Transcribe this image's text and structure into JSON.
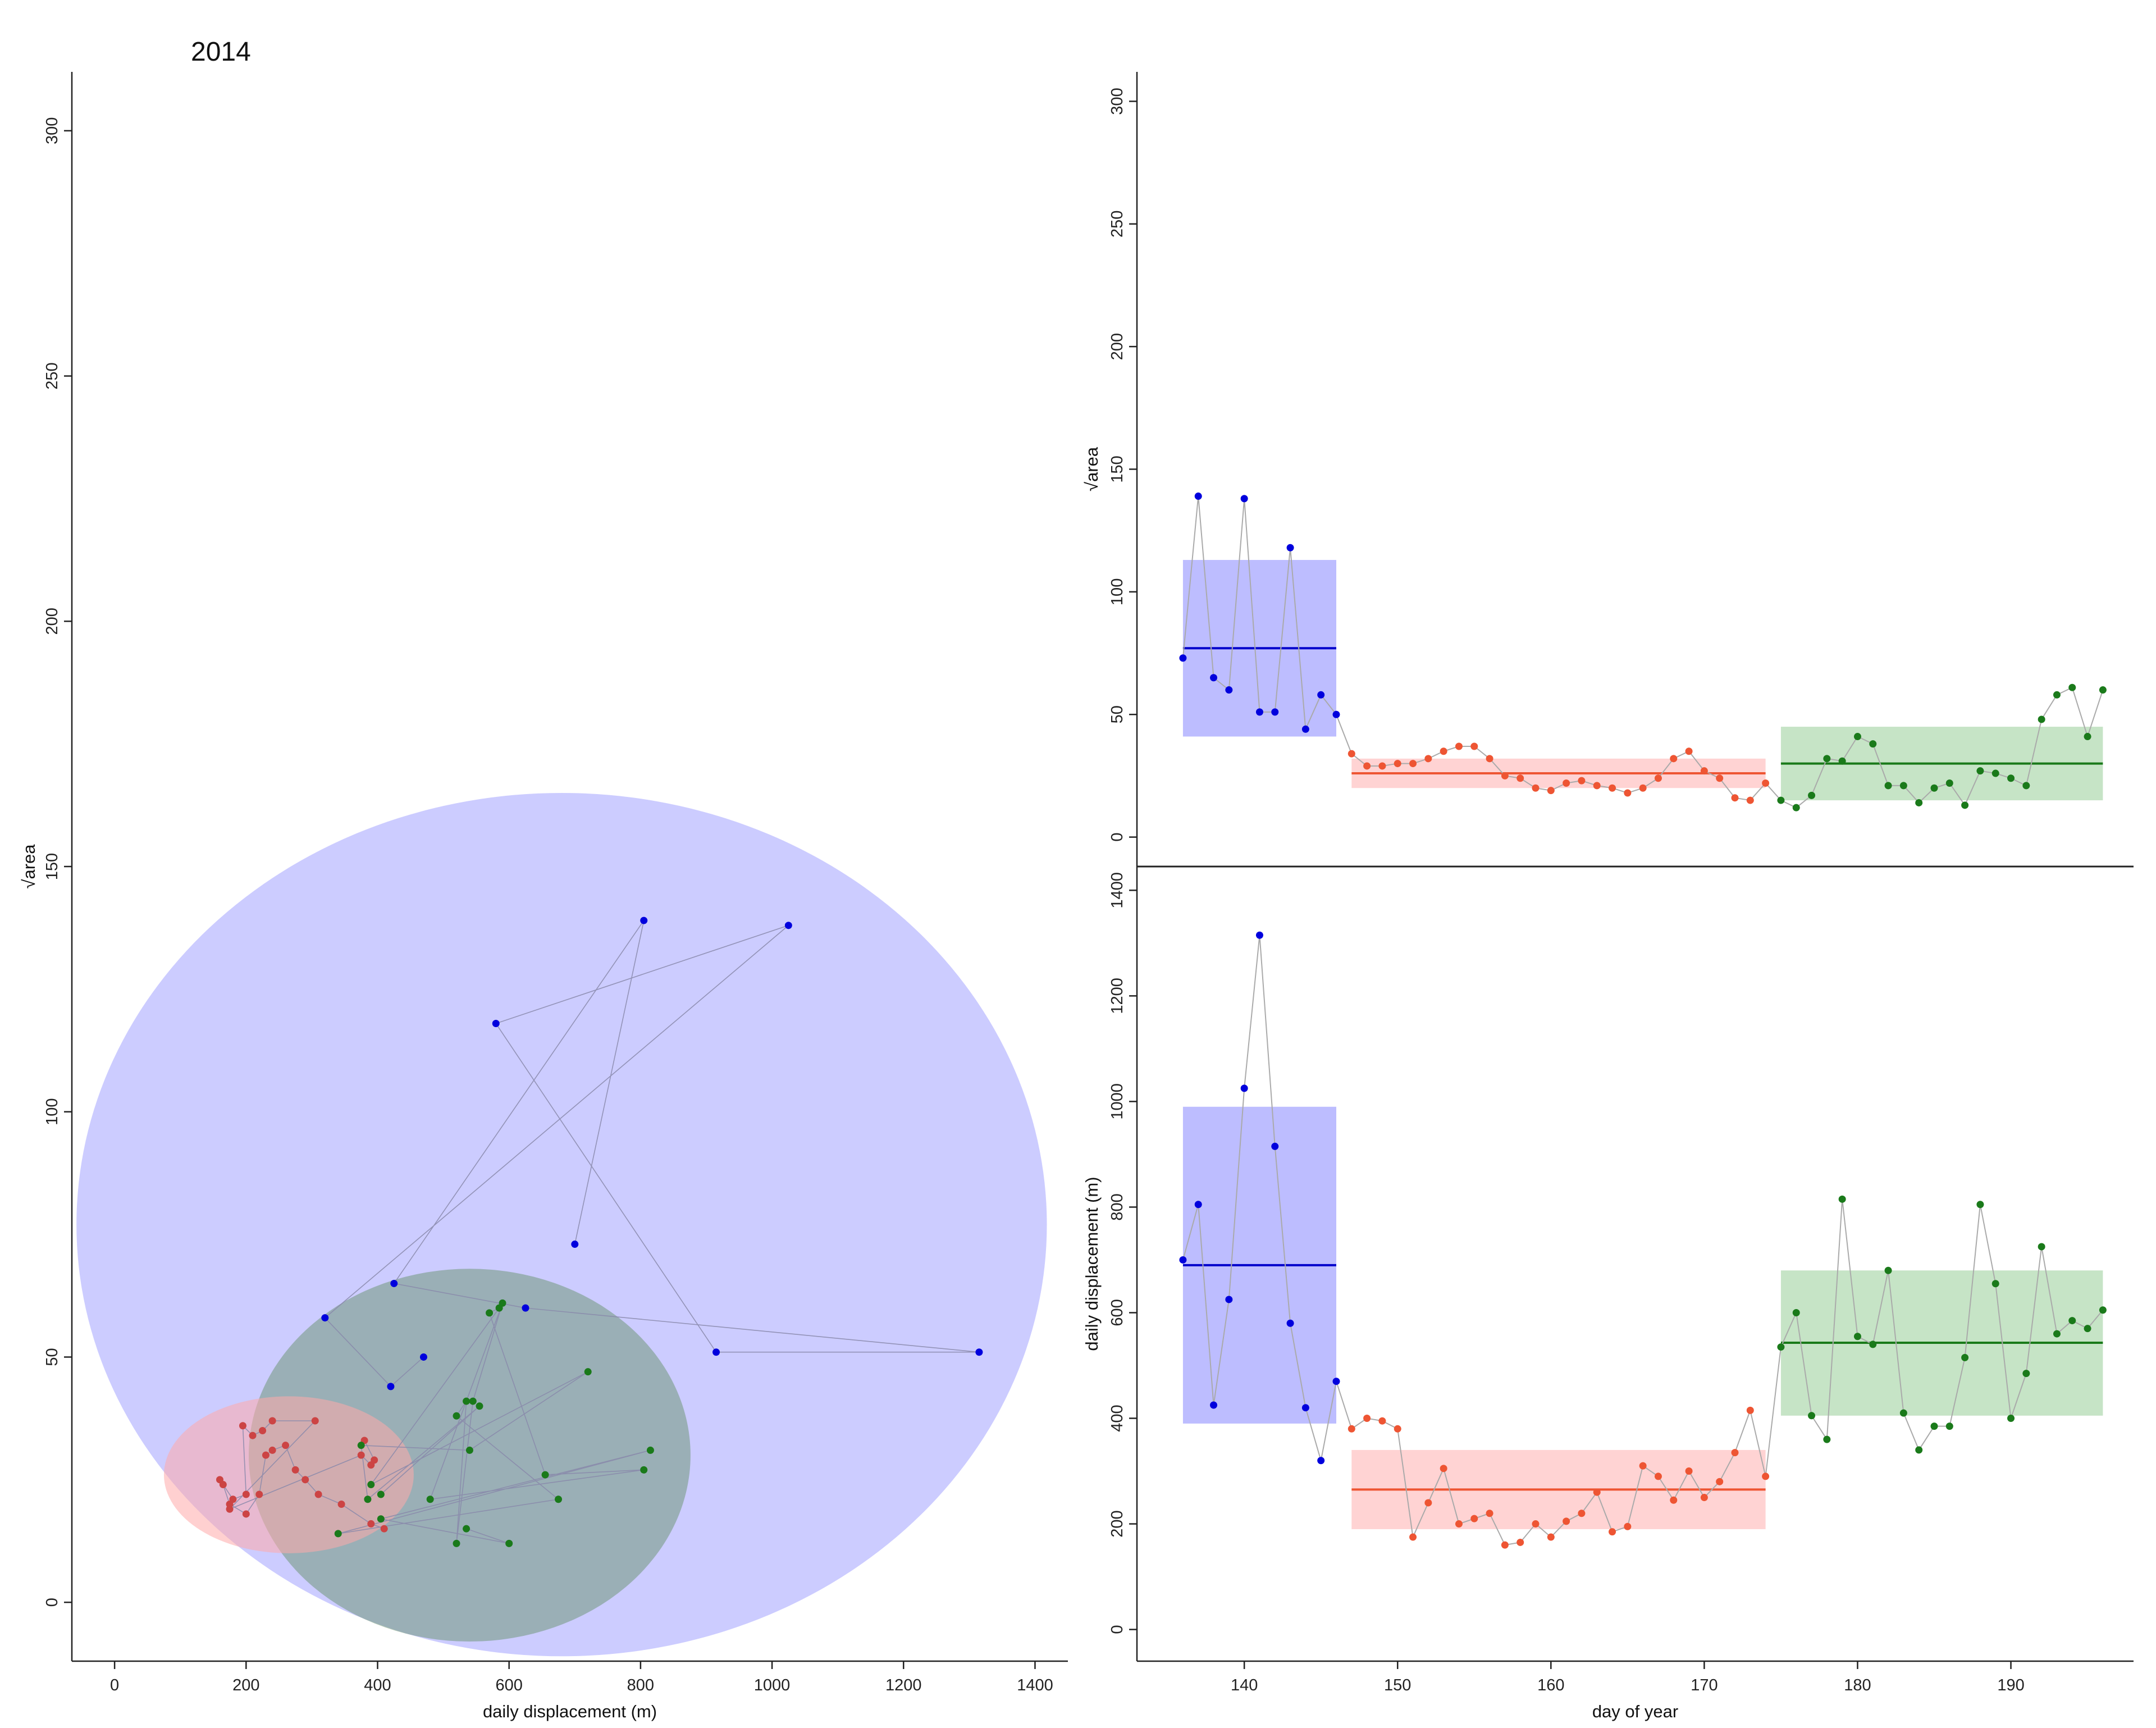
{
  "figure": {
    "title": "2014"
  },
  "chart_data": [
    {
      "id": "scatter",
      "type": "scatter",
      "xlabel": "daily displacement (m)",
      "ylabel": "√area",
      "xlim": [
        -65,
        1450
      ],
      "ylim": [
        -12,
        312
      ],
      "xticks": [
        0,
        200,
        400,
        600,
        800,
        1000,
        1200,
        1400
      ],
      "yticks": [
        0,
        50,
        100,
        150,
        200,
        250,
        300
      ],
      "ellipses": [
        {
          "group": "blue",
          "cx": 680,
          "cy": 77,
          "rx": 738,
          "ry": 88,
          "color": "#9999ff",
          "opacity": 0.5
        },
        {
          "group": "green",
          "cx": 540,
          "cy": 30,
          "rx": 336,
          "ry": 38,
          "color": "#5e8c5e",
          "opacity": 0.45
        },
        {
          "group": "red",
          "cx": 265,
          "cy": 26,
          "rx": 190,
          "ry": 16,
          "color": "#ffaaaa",
          "opacity": 0.55
        }
      ],
      "series": [
        {
          "group": "blue",
          "color": "#0000dd",
          "x": [
            700,
            805,
            425,
            625,
            1315,
            915,
            580,
            1025,
            320,
            420,
            470
          ],
          "y": [
            73,
            139,
            65,
            60,
            51,
            51,
            118,
            138,
            58,
            44,
            50
          ]
        },
        {
          "group": "red",
          "color": "#cc4444",
          "x": [
            380,
            395,
            390,
            375,
            175,
            305,
            240,
            225,
            210,
            195,
            200,
            180,
            160,
            165,
            175,
            200,
            220,
            230,
            240,
            260,
            275,
            290,
            310,
            345,
            390,
            410
          ],
          "y": [
            33,
            29,
            28,
            30,
            19,
            37,
            37,
            35,
            34,
            36,
            22,
            21,
            25,
            24,
            20,
            18,
            22,
            30,
            31,
            32,
            27,
            25,
            22,
            20,
            16,
            15
          ]
        },
        {
          "group": "green",
          "color": "#1a7a1a",
          "x": [
            535,
            600,
            405,
            815,
            340,
            675,
            520,
            535,
            520,
            545,
            590,
            480,
            805,
            655,
            570,
            585,
            390,
            720,
            540,
            375,
            385,
            555,
            405
          ],
          "y": [
            15,
            12,
            17,
            31,
            14,
            21,
            38,
            41,
            12,
            41,
            61,
            21,
            27,
            26,
            59,
            60,
            24,
            47,
            31,
            32,
            21,
            40,
            22
          ]
        }
      ]
    },
    {
      "id": "area_ts",
      "type": "line",
      "xlabel": "",
      "ylabel": "√area",
      "xlim": [
        133,
        198
      ],
      "ylim": [
        -12,
        312
      ],
      "yticks": [
        0,
        50,
        100,
        150,
        200,
        250,
        300
      ],
      "x": [
        136,
        137,
        138,
        139,
        140,
        141,
        142,
        143,
        144,
        145,
        146,
        147,
        148,
        149,
        150,
        151,
        152,
        153,
        154,
        155,
        156,
        157,
        158,
        159,
        160,
        161,
        162,
        163,
        164,
        165,
        166,
        167,
        168,
        169,
        170,
        171,
        172,
        173,
        174,
        175,
        176,
        177,
        178,
        179,
        180,
        181,
        182,
        183,
        184,
        185,
        186,
        187,
        188,
        189,
        190,
        191,
        192,
        193,
        194,
        195,
        196
      ],
      "y": [
        73,
        139,
        65,
        60,
        138,
        51,
        51,
        118,
        44,
        58,
        50,
        34,
        29,
        29,
        30,
        30,
        32,
        35,
        37,
        37,
        32,
        25,
        24,
        20,
        19,
        22,
        23,
        21,
        20,
        18,
        20,
        24,
        32,
        35,
        27,
        24,
        16,
        15,
        22,
        15,
        12,
        17,
        32,
        31,
        41,
        38,
        21,
        21,
        14,
        20,
        22,
        13,
        27,
        26,
        24,
        21,
        48,
        58,
        61,
        41,
        60
      ],
      "regimes": [
        {
          "group": "blue",
          "start": 136,
          "end": 146,
          "mean": 77,
          "lower": 41,
          "upper": 113,
          "color": "#0000cc",
          "fill": "#9999ff",
          "point": "#0000dd"
        },
        {
          "group": "red",
          "start": 147,
          "end": 174,
          "mean": 26,
          "lower": 20,
          "upper": 32,
          "color": "#ee5533",
          "fill": "#ffbbbb",
          "point": "#ee5533"
        },
        {
          "group": "green",
          "start": 175,
          "end": 196,
          "mean": 30,
          "lower": 15,
          "upper": 45,
          "color": "#1a7a1a",
          "fill": "#a8d5a8",
          "point": "#1a7a1a"
        }
      ]
    },
    {
      "id": "disp_ts",
      "type": "line",
      "xlabel": "day of year",
      "ylabel": "daily displacement (m)",
      "xlim": [
        133,
        198
      ],
      "ylim": [
        -60,
        1445
      ],
      "xticks": [
        140,
        150,
        160,
        170,
        180,
        190
      ],
      "yticks": [
        0,
        200,
        400,
        600,
        800,
        1000,
        1200,
        1400
      ],
      "x": [
        136,
        137,
        138,
        139,
        140,
        141,
        142,
        143,
        144,
        145,
        146,
        147,
        148,
        149,
        150,
        151,
        152,
        153,
        154,
        155,
        156,
        157,
        158,
        159,
        160,
        161,
        162,
        163,
        164,
        165,
        166,
        167,
        168,
        169,
        170,
        171,
        172,
        173,
        174,
        175,
        176,
        177,
        178,
        179,
        180,
        181,
        182,
        183,
        184,
        185,
        186,
        187,
        188,
        189,
        190,
        191,
        192,
        193,
        194,
        195,
        196
      ],
      "y": [
        700,
        805,
        425,
        625,
        1025,
        1315,
        915,
        580,
        420,
        320,
        470,
        380,
        400,
        395,
        380,
        175,
        240,
        305,
        200,
        210,
        220,
        160,
        165,
        200,
        175,
        205,
        220,
        260,
        185,
        195,
        310,
        290,
        245,
        300,
        250,
        280,
        335,
        415,
        290,
        535,
        600,
        405,
        360,
        815,
        555,
        540,
        680,
        410,
        340,
        385,
        385,
        515,
        805,
        655,
        400,
        485,
        725,
        560,
        585,
        570,
        605
      ],
      "regimes": [
        {
          "group": "blue",
          "start": 136,
          "end": 146,
          "mean": 690,
          "lower": 390,
          "upper": 990,
          "color": "#0000cc",
          "fill": "#9999ff",
          "point": "#0000dd"
        },
        {
          "group": "red",
          "start": 147,
          "end": 174,
          "mean": 265,
          "lower": 190,
          "upper": 340,
          "color": "#ee5533",
          "fill": "#ffbbbb",
          "point": "#ee5533"
        },
        {
          "group": "green",
          "start": 175,
          "end": 196,
          "mean": 543,
          "lower": 405,
          "upper": 680,
          "color": "#1a7a1a",
          "fill": "#a8d5a8",
          "point": "#1a7a1a"
        }
      ]
    }
  ]
}
